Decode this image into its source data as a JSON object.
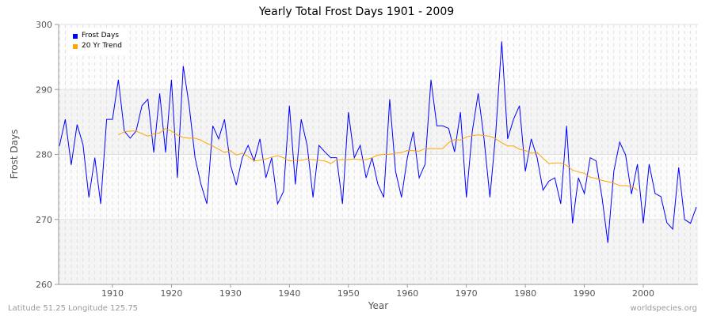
{
  "chart_data": {
    "type": "line",
    "title": "Yearly Total Frost Days 1901 - 2009",
    "xlabel": "Year",
    "ylabel": "Frost Days",
    "xlim": [
      1901,
      2009
    ],
    "ylim": [
      260,
      300
    ],
    "xticks": [
      1910,
      1920,
      1930,
      1940,
      1950,
      1960,
      1970,
      1980,
      1990,
      2000
    ],
    "yticks": [
      260,
      270,
      280,
      290,
      300
    ],
    "grid": true,
    "legend_position": "top-left",
    "series": [
      {
        "name": "Frost Days",
        "color": "#0000ff",
        "x_start": 1901,
        "values": [
          281.3,
          285.4,
          278.4,
          284.6,
          281.5,
          273.4,
          279.5,
          272.4,
          285.4,
          285.4,
          291.5,
          283.6,
          282.5,
          283.6,
          287.5,
          288.5,
          280.3,
          289.4,
          280.3,
          291.5,
          276.4,
          293.6,
          287.5,
          279.5,
          275.4,
          272.4,
          284.4,
          282.4,
          285.4,
          278.4,
          275.3,
          279.5,
          281.4,
          279.0,
          282.4,
          276.4,
          279.5,
          272.4,
          274.3,
          287.5,
          275.4,
          285.4,
          281.4,
          273.4,
          281.4,
          280.4,
          279.5,
          279.5,
          272.4,
          286.5,
          279.5,
          281.4,
          276.4,
          279.5,
          275.4,
          273.4,
          288.5,
          277.4,
          273.4,
          279.5,
          283.5,
          276.4,
          278.5,
          291.5,
          284.4,
          284.4,
          284.0,
          280.4,
          286.5,
          273.4,
          283.5,
          289.4,
          282.4,
          273.4,
          283.5,
          297.4,
          282.4,
          285.4,
          287.5,
          277.4,
          282.4,
          279.5,
          274.5,
          275.9,
          276.4,
          272.4,
          284.4,
          269.4,
          276.4,
          274.0,
          279.5,
          279.0,
          273.4,
          266.4,
          277.4,
          281.9,
          279.9,
          273.9,
          278.5,
          269.4,
          278.5,
          274.0,
          273.5,
          269.5,
          268.5,
          278.0,
          270.0,
          269.4,
          271.9
        ]
      },
      {
        "name": "20 Yr Trend",
        "color": "#ffa500",
        "x_start": 1911,
        "values": [
          283.0,
          283.5,
          283.6,
          283.6,
          283.2,
          282.8,
          283.2,
          283.3,
          284.0,
          283.6,
          283.0,
          282.6,
          282.5,
          282.5,
          282.2,
          281.7,
          281.3,
          280.8,
          280.3,
          280.6,
          279.9,
          280.2,
          279.7,
          279.0,
          279.1,
          279.3,
          279.6,
          279.8,
          279.5,
          279.0,
          279.1,
          279.1,
          279.3,
          279.2,
          279.1,
          279.0,
          278.6,
          279.2,
          279.2,
          279.2,
          279.3,
          279.2,
          279.2,
          279.5,
          279.9,
          280.0,
          280.0,
          280.2,
          280.3,
          280.6,
          280.6,
          280.5,
          280.9,
          280.9,
          280.9,
          280.9,
          281.8,
          282.3,
          282.2,
          282.7,
          282.9,
          283.0,
          282.9,
          282.8,
          282.4,
          281.8,
          281.3,
          281.3,
          280.8,
          280.6,
          280.2,
          280.3,
          279.4,
          278.6,
          278.7,
          278.7,
          278.3,
          277.6,
          277.3,
          277.1,
          276.5,
          276.3,
          276.0,
          275.8,
          275.6,
          275.2,
          275.2,
          275.1,
          274.5
        ]
      }
    ]
  },
  "footer": {
    "location": "Latitude 51.25 Longitude 125.75",
    "site": "worldspecies.org"
  }
}
